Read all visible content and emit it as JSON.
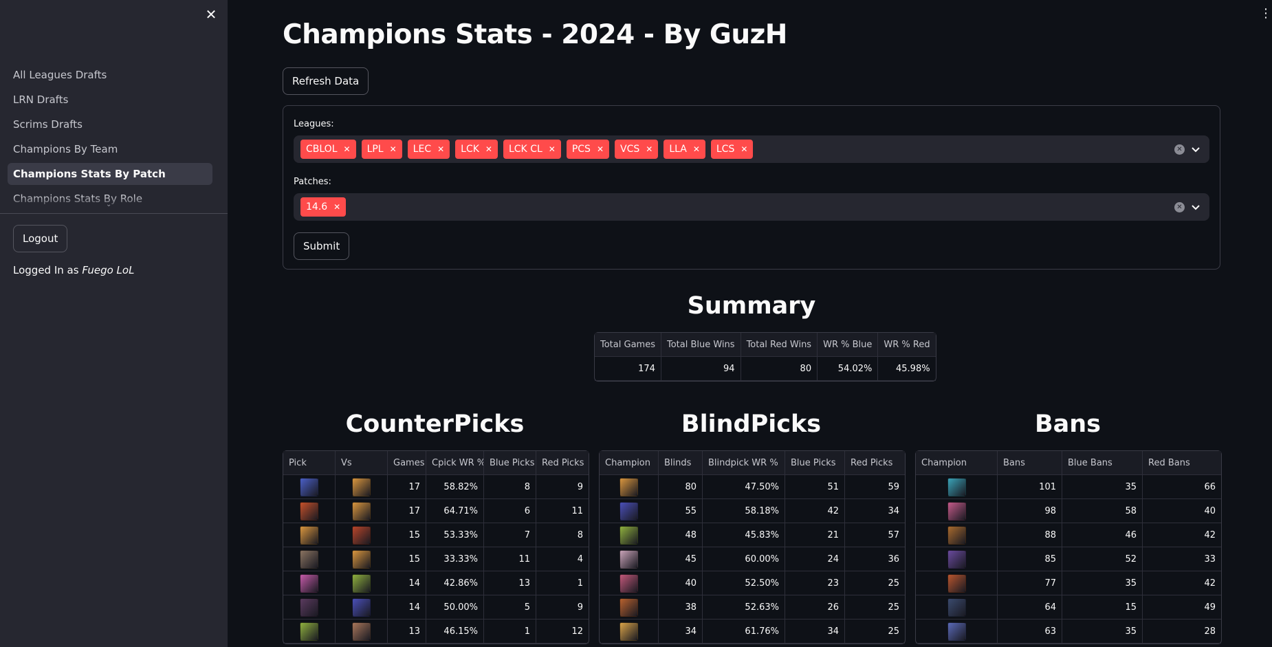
{
  "sidebar": {
    "nav_items": [
      {
        "label": "All Leagues Drafts",
        "active": false
      },
      {
        "label": "LRN Drafts",
        "active": false
      },
      {
        "label": "Scrims Drafts",
        "active": false
      },
      {
        "label": "Champions By Team",
        "active": false
      },
      {
        "label": "Champions Stats By Patch",
        "active": true
      },
      {
        "label": "Champions Stats By Role",
        "active": false
      }
    ],
    "logout_label": "Logout",
    "logged_prefix": "Logged In as ",
    "logged_user": "Fuego LoL"
  },
  "header": {
    "title": "Champions Stats - 2024 - By GuzH",
    "refresh_label": "Refresh Data"
  },
  "form": {
    "leagues_label": "Leagues:",
    "leagues": [
      "CBLOL",
      "LPL",
      "LEC",
      "LCK",
      "LCK CL",
      "PCS",
      "VCS",
      "LLA",
      "LCS"
    ],
    "patches_label": "Patches:",
    "patches": [
      "14.6"
    ],
    "submit_label": "Submit",
    "tag_color": "#ff4b4b"
  },
  "summary": {
    "title": "Summary",
    "columns": [
      "Total Games",
      "Total Blue Wins",
      "Total Red Wins",
      "WR % Blue",
      "WR % Red"
    ],
    "values": [
      "174",
      "94",
      "80",
      "54.02%",
      "45.98%"
    ]
  },
  "counterpicks": {
    "title": "CounterPicks",
    "columns": [
      "Pick",
      "Vs",
      "Games",
      "Cpick WR %",
      "Blue Picks",
      "Red Picks"
    ],
    "rows": [
      {
        "pick": "#4a5fc6",
        "vs": "#d9963e",
        "games": "17",
        "wr": "58.82%",
        "blue": "8",
        "red": "9"
      },
      {
        "pick": "#c4502a",
        "vs": "#d9963e",
        "games": "17",
        "wr": "64.71%",
        "blue": "6",
        "red": "11"
      },
      {
        "pick": "#d9963e",
        "vs": "#b8452a",
        "games": "15",
        "wr": "53.33%",
        "blue": "7",
        "red": "8"
      },
      {
        "pick": "#8a7360",
        "vs": "#d9963e",
        "games": "15",
        "wr": "33.33%",
        "blue": "11",
        "red": "4"
      },
      {
        "pick": "#c45aa8",
        "vs": "#8fb03e",
        "games": "14",
        "wr": "42.86%",
        "blue": "13",
        "red": "1"
      },
      {
        "pick": "#5a3a5e",
        "vs": "#4a4fb8",
        "games": "14",
        "wr": "50.00%",
        "blue": "5",
        "red": "9"
      },
      {
        "pick": "#8fb03e",
        "vs": "#a8765a",
        "games": "13",
        "wr": "46.15%",
        "blue": "1",
        "red": "12"
      }
    ]
  },
  "blindpicks": {
    "title": "BlindPicks",
    "columns": [
      "Champion",
      "Blinds",
      "Blindpick WR %",
      "Blue Picks",
      "Red Picks"
    ],
    "rows": [
      {
        "champ": "#d9963e",
        "blinds": "80",
        "wr": "47.50%",
        "blue": "51",
        "red": "59"
      },
      {
        "champ": "#4a4fb8",
        "blinds": "55",
        "wr": "58.18%",
        "blue": "42",
        "red": "34"
      },
      {
        "champ": "#8fb03e",
        "blinds": "48",
        "wr": "45.83%",
        "blue": "21",
        "red": "57"
      },
      {
        "champ": "#c9a3b8",
        "blinds": "45",
        "wr": "60.00%",
        "blue": "24",
        "red": "36"
      },
      {
        "champ": "#c2587a",
        "blinds": "40",
        "wr": "52.50%",
        "blue": "23",
        "red": "25"
      },
      {
        "champ": "#b8612e",
        "blinds": "38",
        "wr": "52.63%",
        "blue": "26",
        "red": "25"
      },
      {
        "champ": "#d9a348",
        "blinds": "34",
        "wr": "61.76%",
        "blue": "34",
        "red": "25"
      }
    ]
  },
  "bans": {
    "title": "Bans",
    "columns": [
      "Champion",
      "Bans",
      "Blue Bans",
      "Red Bans"
    ],
    "rows": [
      {
        "champ": "#3aa3b8",
        "bans": "101",
        "blue": "35",
        "red": "66"
      },
      {
        "champ": "#c45a8a",
        "bans": "98",
        "blue": "58",
        "red": "40"
      },
      {
        "champ": "#a86a2e",
        "bans": "88",
        "blue": "46",
        "red": "42"
      },
      {
        "champ": "#6a4a9e",
        "bans": "85",
        "blue": "52",
        "red": "33"
      },
      {
        "champ": "#b8552e",
        "bans": "77",
        "blue": "35",
        "red": "42"
      },
      {
        "champ": "#3a4a6e",
        "bans": "64",
        "blue": "15",
        "red": "49"
      },
      {
        "champ": "#5a6ab8",
        "bans": "63",
        "blue": "35",
        "red": "28"
      }
    ]
  }
}
